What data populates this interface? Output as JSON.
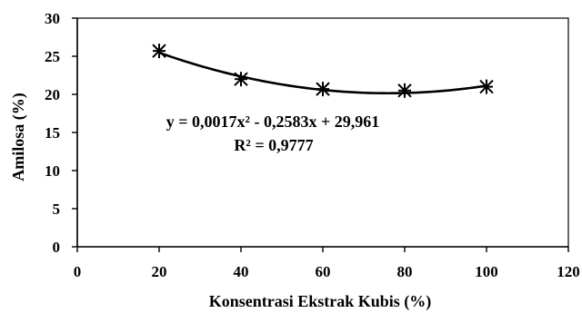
{
  "chart_data": {
    "type": "scatter",
    "xlabel": "Konsentrasi Ekstrak Kubis (%)",
    "ylabel": "Amilosa (%)",
    "xlim": [
      0,
      120
    ],
    "ylim": [
      0,
      30
    ],
    "x_ticks": [
      "0",
      "20",
      "40",
      "60",
      "80",
      "100",
      "120"
    ],
    "y_ticks": [
      "0",
      "5",
      "10",
      "15",
      "20",
      "25",
      "30"
    ],
    "grid": false,
    "legend": "none",
    "series": [
      {
        "marker": "asterisk",
        "x": [
          20,
          40,
          60,
          80,
          100
        ],
        "y": [
          25.7,
          22.0,
          20.7,
          20.5,
          21.0
        ]
      }
    ],
    "trendline": {
      "kind": "polynomial",
      "coefficients": {
        "a": 0.0017,
        "b": -0.2583,
        "c": 29.961
      },
      "equation": "y = 0,0017x² - 0,2583x + 29,961",
      "r_squared": "R² = 0,9777"
    }
  }
}
